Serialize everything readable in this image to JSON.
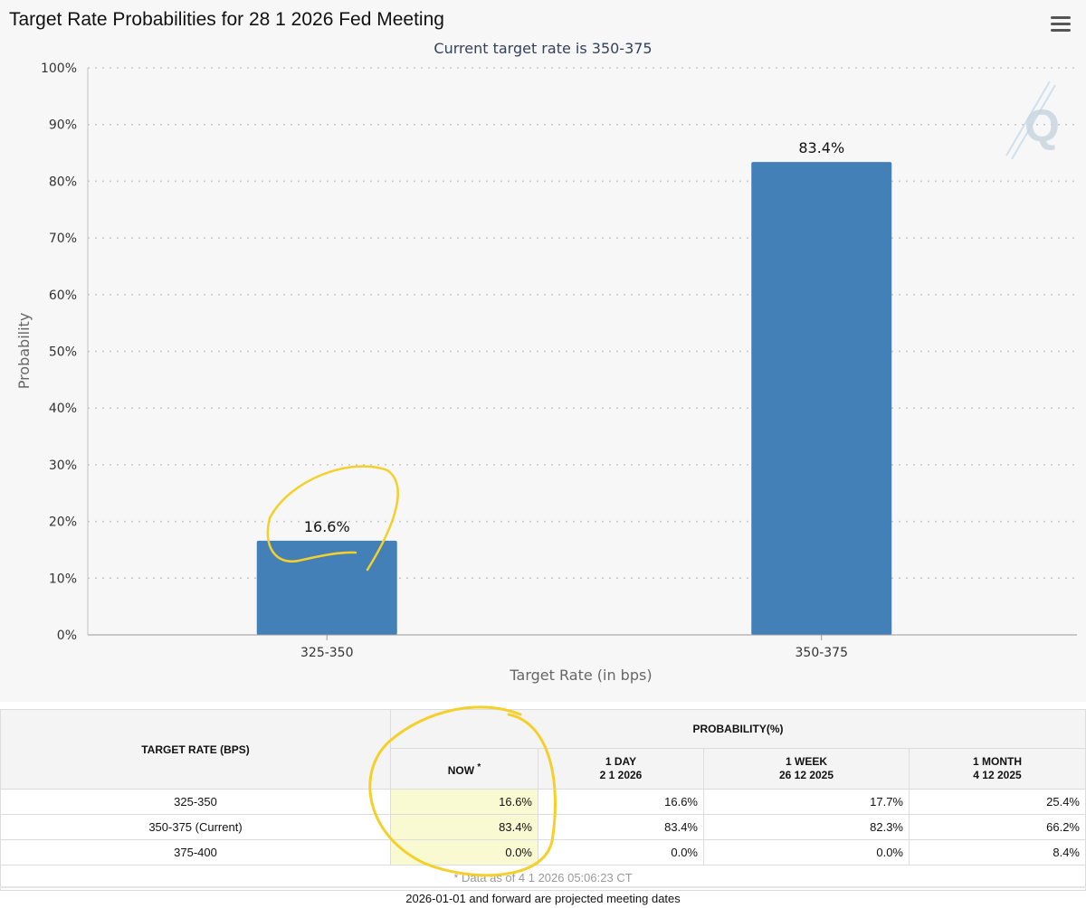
{
  "chart_data": {
    "type": "bar",
    "title": "Target Rate Probabilities for 28 1 2026 Fed Meeting",
    "subtitle": "Current target rate is 350-375",
    "categories": [
      "325-350",
      "350-375"
    ],
    "values": [
      16.6,
      83.4
    ],
    "data_labels": [
      "16.6%",
      "83.4%"
    ],
    "xlabel": "Target Rate (in bps)",
    "ylabel": "Probability",
    "ylim": [
      0,
      100
    ],
    "yticks": [
      "0%",
      "10%",
      "20%",
      "30%",
      "40%",
      "50%",
      "60%",
      "70%",
      "80%",
      "90%",
      "100%"
    ],
    "grid": true,
    "bar_color": "#4380b8"
  },
  "menu": {
    "icon": "hamburger-menu-icon"
  },
  "watermark": {
    "icon": "quikstrike-q-logo"
  },
  "table": {
    "target_header": "TARGET RATE (BPS)",
    "probability_header": "PROBABILITY(%)",
    "columns": [
      {
        "label": "NOW",
        "marker": "*",
        "date": ""
      },
      {
        "label": "1 DAY",
        "date": "2 1 2026"
      },
      {
        "label": "1 WEEK",
        "date": "26 12 2025"
      },
      {
        "label": "1 MONTH",
        "date": "4 12 2025"
      }
    ],
    "rows": [
      {
        "rate": "325-350",
        "values": [
          "16.6%",
          "16.6%",
          "17.7%",
          "25.4%"
        ]
      },
      {
        "rate": "350-375 (Current)",
        "values": [
          "83.4%",
          "83.4%",
          "82.3%",
          "66.2%"
        ]
      },
      {
        "rate": "375-400",
        "values": [
          "0.0%",
          "0.0%",
          "0.0%",
          "8.4%"
        ]
      }
    ],
    "footnote": "* Data as of 4 1 2026 05:06:23 CT",
    "highlight_color": "#fafad2"
  },
  "footer": "2026-01-01 and forward are projected meeting dates",
  "annotation_color": "#f5cf2a"
}
